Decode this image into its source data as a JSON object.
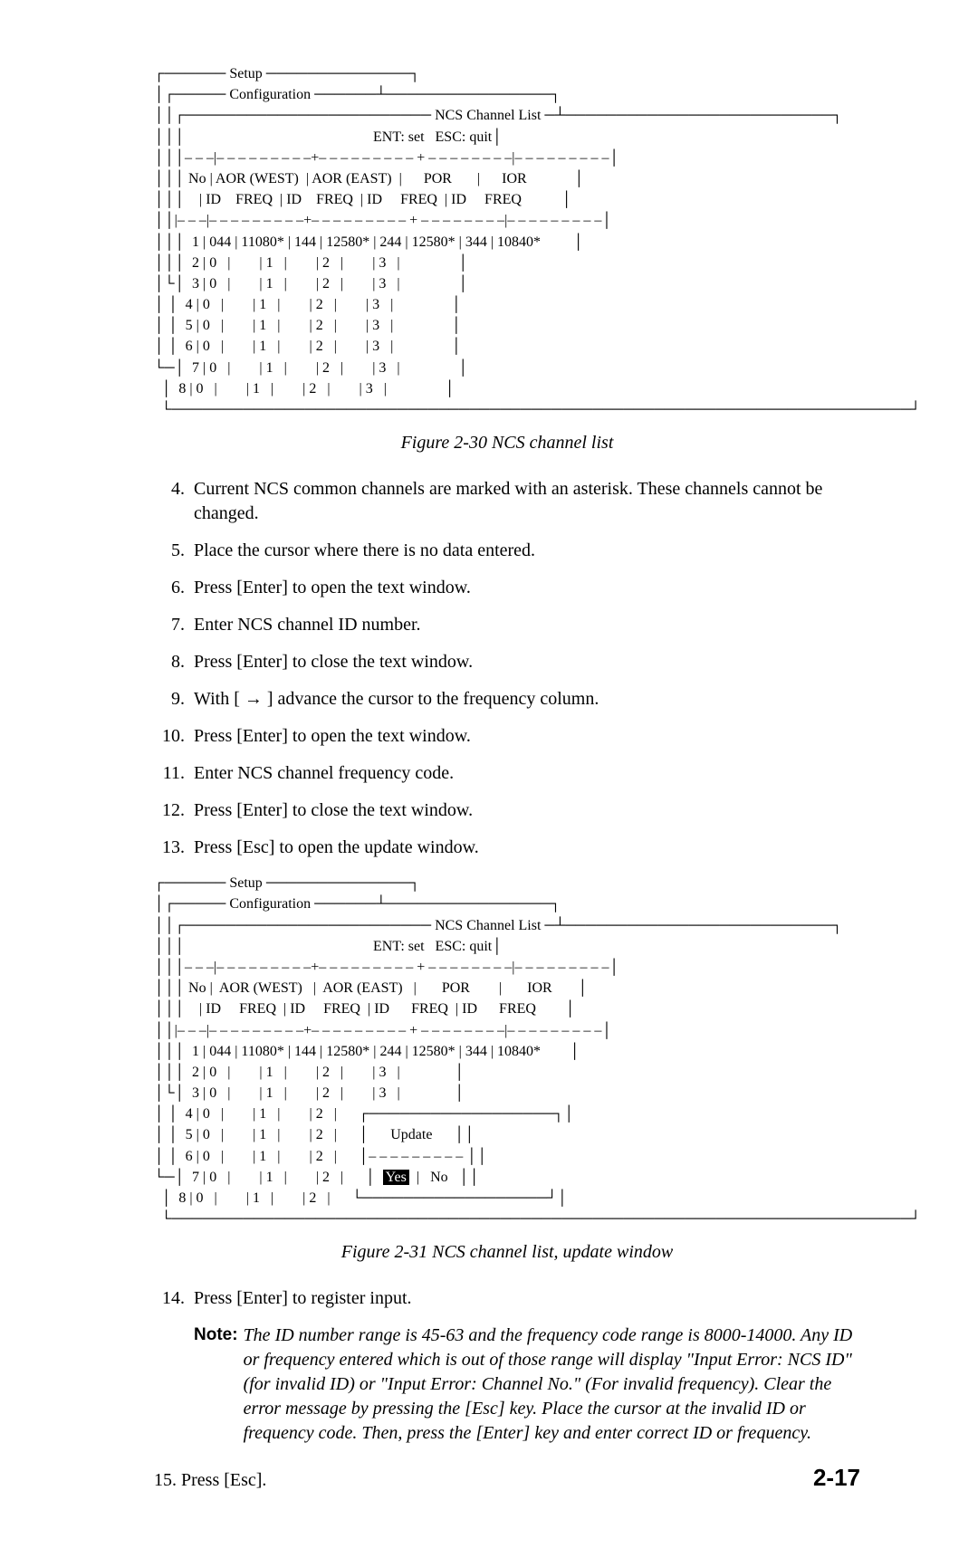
{
  "figure1": {
    "ascii": "┌────── Setup ──────────────┐\n│┌───── Configuration ──────┴────────────────┐\n││┌──────────────────────── NCS Channel List ─┴──────────────────────────┐\n│││                                                    ENT: set   ESC: quit│\n│││– – –|– – – – – – – – –+– – – – – – – – – + – – – – – – – –|– – – – – – – – –│\n│││ No | AOR (WEST)  | AOR (EAST)  |      POR       |      IOR             │\n│││    | ID    FREQ  | ID    FREQ  | ID     FREQ  | ID     FREQ           │\n││|– – –|– – – – – – – – –+– – – – – – – – – + – – – – – – – –|– – – – – – – – –│\n│││  1 | 044 | 11080* | 144 | 12580* | 244 | 12580* | 344 | 10840*         │\n│││  2 | 0   |        | 1   |        | 2   |        | 3   |                │\n│└│  3 | 0   |        | 1   |        | 2   |        | 3   |                │\n│ │  4 | 0   |        | 1   |        | 2   |        | 3   |                │\n│ │  5 | 0   |        | 1   |        | 2   |        | 3   |                │\n│ │  6 | 0   |        | 1   |        | 2   |        | 3   |                │\n└─│  7 | 0   |        | 1   |        | 2   |        | 3   |                │\n  │  8 | 0   |        | 1   |        | 2   |        | 3   |                │\n  └────────────────────────────────────────────────────────────────────────┘",
    "caption": "Figure 2-30 NCS channel list"
  },
  "figure2": {
    "caption": "Figure 2-31 NCS channel list, update window",
    "setup": "Setup",
    "config": "Configuration",
    "title": "NCS Channel List",
    "hint": "ENT: set   ESC: quit",
    "hdr": "No |  AOR (WEST)   |  AOR (EAST)   |       POR        |       IOR",
    "sub": "   | ID     FREQ  | ID     FREQ  | ID      FREQ  | ID      FREQ",
    "r1": " 1 | 044 | 11080* | 144 | 12580* | 244 | 12580* | 344 | 10840*",
    "r2": " 2 | 0   |        | 1   |        | 2   |        | 3   |",
    "r3": " 3 | 0   |        | 1   |        | 2   |        | 3   |",
    "r4": " 4 | 0   |        | 1   |        | 2   |",
    "r5": " 5 | 0   |        | 1   |        | 2   |",
    "r6": " 6 | 0   |        | 1   |        | 2   |",
    "r7": " 7 | 0   |        | 1   |        | 2   |",
    "r8": " 8 | 0   |        | 1   |        | 2   |",
    "update": "Update",
    "yes": "Yes",
    "no": "No"
  },
  "steps": {
    "s4": "Current NCS common channels are marked with an asterisk. These channels cannot be changed.",
    "s5": "Place the cursor where there is no data entered.",
    "s6": "Press [Enter] to open the text window.",
    "s7": "Enter NCS channel ID number.",
    "s8": "Press [Enter] to close the text window.",
    "s9": "With [ → ] advance the cursor to the frequency column.",
    "s10": "Press [Enter] to open the text window.",
    "s11": "Enter NCS channel frequency code.",
    "s12": "Press [Enter] to close the text window.",
    "s13": "Press [Esc] to open the update window.",
    "s14": "Press [Enter] to register input.",
    "s15": "Press [Esc]."
  },
  "note": {
    "label": "Note:",
    "text": "The ID number range is 45-63 and the frequency code range is 8000-14000. Any ID or frequency entered which is out of those range will display \"Input Error: NCS ID\" (for invalid ID) or \"Input Error: Channel No.\" (For invalid frequency). Clear the error message by pressing the [Esc] key. Place the cursor at the invalid ID or frequency code. Then, press the [Enter] key and enter correct ID or frequency."
  },
  "pagenum": "2-17"
}
